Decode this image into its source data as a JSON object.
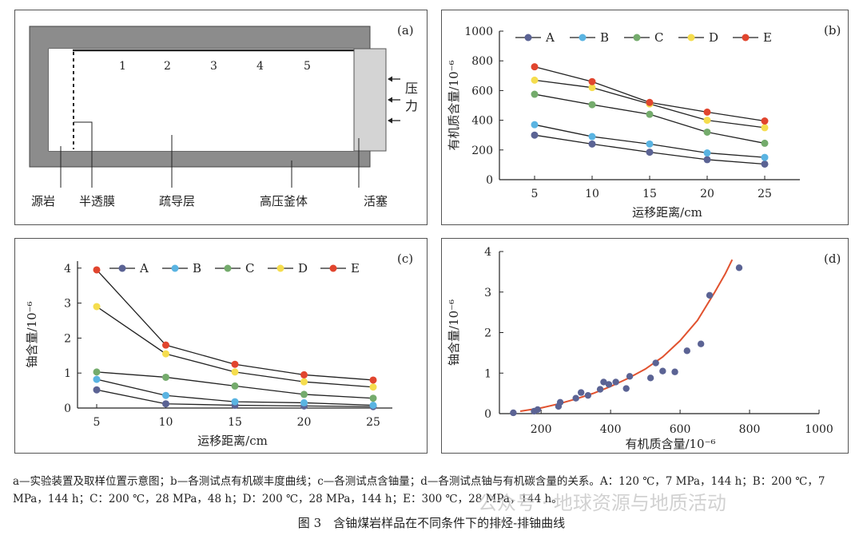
{
  "panel_a": {
    "tag": "(a)",
    "positions": [
      "1",
      "2",
      "3",
      "4",
      "5"
    ],
    "pressure_label": [
      "压",
      "力"
    ],
    "labels": {
      "source_rock": "源岩",
      "membrane": "半透膜",
      "carrier_layer": "疏导层",
      "vessel": "高压釜体",
      "piston": "活塞"
    }
  },
  "chart_data": [
    {
      "panel": "(b)",
      "type": "line",
      "x": [
        5,
        10,
        15,
        20,
        25
      ],
      "series": [
        {
          "name": "A",
          "color": "#5b6394",
          "values": [
            300,
            240,
            185,
            135,
            105
          ]
        },
        {
          "name": "B",
          "color": "#5ab4e2",
          "values": [
            370,
            290,
            240,
            180,
            150
          ]
        },
        {
          "name": "C",
          "color": "#74ab6c",
          "values": [
            575,
            505,
            440,
            320,
            245
          ]
        },
        {
          "name": "D",
          "color": "#f5dd4e",
          "values": [
            670,
            620,
            510,
            400,
            350
          ]
        },
        {
          "name": "E",
          "color": "#e1452e",
          "values": [
            760,
            660,
            520,
            455,
            395
          ]
        }
      ],
      "xlabel": "运移距离/cm",
      "ylabel": "有机质含量/10⁻⁶",
      "xticks": [
        "5",
        "10",
        "15",
        "20",
        "25"
      ],
      "yticks": [
        "0",
        "200",
        "400",
        "600",
        "800",
        "1000"
      ],
      "ylim": [
        0,
        1000
      ],
      "legend": "top"
    },
    {
      "panel": "(c)",
      "type": "line",
      "x": [
        5,
        10,
        15,
        20,
        25
      ],
      "series": [
        {
          "name": "A",
          "color": "#5b6394",
          "values": [
            0.52,
            0.12,
            0.08,
            0.06,
            0.04
          ]
        },
        {
          "name": "B",
          "color": "#5ab4e2",
          "values": [
            0.82,
            0.36,
            0.18,
            0.15,
            0.08
          ]
        },
        {
          "name": "C",
          "color": "#74ab6c",
          "values": [
            1.03,
            0.88,
            0.63,
            0.39,
            0.28
          ]
        },
        {
          "name": "D",
          "color": "#f5dd4e",
          "values": [
            2.9,
            1.55,
            1.03,
            0.75,
            0.6
          ]
        },
        {
          "name": "E",
          "color": "#e1452e",
          "values": [
            3.95,
            1.8,
            1.25,
            0.95,
            0.8
          ]
        }
      ],
      "xlabel": "运移距离/cm",
      "ylabel": "铀含量/10⁻⁶",
      "xticks": [
        "5",
        "10",
        "15",
        "20",
        "25"
      ],
      "yticks": [
        "0",
        "1",
        "2",
        "3",
        "4"
      ],
      "ylim": [
        0,
        4.2
      ],
      "legend": "top"
    },
    {
      "panel": "(d)",
      "type": "scatter",
      "xlabel": "有机质含量/10⁻⁶",
      "ylabel": "铀含量/10⁻⁶",
      "xticks": [
        "200",
        "400",
        "600",
        "800",
        "1000"
      ],
      "yticks": [
        "0",
        "1",
        "2",
        "3",
        "4"
      ],
      "xlim": [
        80,
        1000
      ],
      "ylim": [
        0,
        4
      ],
      "points": {
        "color": "#5b6394",
        "x": [
          120,
          180,
          190,
          250,
          255,
          300,
          315,
          335,
          370,
          380,
          395,
          415,
          445,
          455,
          515,
          530,
          550,
          585,
          620,
          660,
          685,
          770
        ],
        "y": [
          0.02,
          0.06,
          0.1,
          0.18,
          0.28,
          0.38,
          0.52,
          0.45,
          0.6,
          0.78,
          0.72,
          0.78,
          0.62,
          0.92,
          0.88,
          1.25,
          1.05,
          1.03,
          1.55,
          1.72,
          2.92,
          3.6
        ]
      },
      "fit": {
        "color": "#e1522f",
        "x": [
          140,
          200,
          250,
          300,
          350,
          400,
          450,
          500,
          550,
          600,
          650,
          700,
          730,
          750
        ],
        "y": [
          0.06,
          0.14,
          0.24,
          0.36,
          0.5,
          0.67,
          0.87,
          1.1,
          1.4,
          1.8,
          2.3,
          3.0,
          3.45,
          3.8
        ]
      }
    }
  ],
  "caption": {
    "notes": "a—实验装置及取样位置示意图；b—各测试点有机碳丰度曲线；c—各测试点含铀量；d—各测试点铀与有机碳含量的关系。A：120 ℃，7 MPa，144 h；B：200 ℃，7 MPa，144 h；C：200 ℃，28 MPa，48 h；D：200 ℃，28 MPa，144 h；E：300 ℃，28 MPa，144 h。",
    "title": "图 3　含铀煤岩样品在不同条件下的排烃-排铀曲线",
    "watermark": "公众号 · 地球资源与地质活动"
  }
}
